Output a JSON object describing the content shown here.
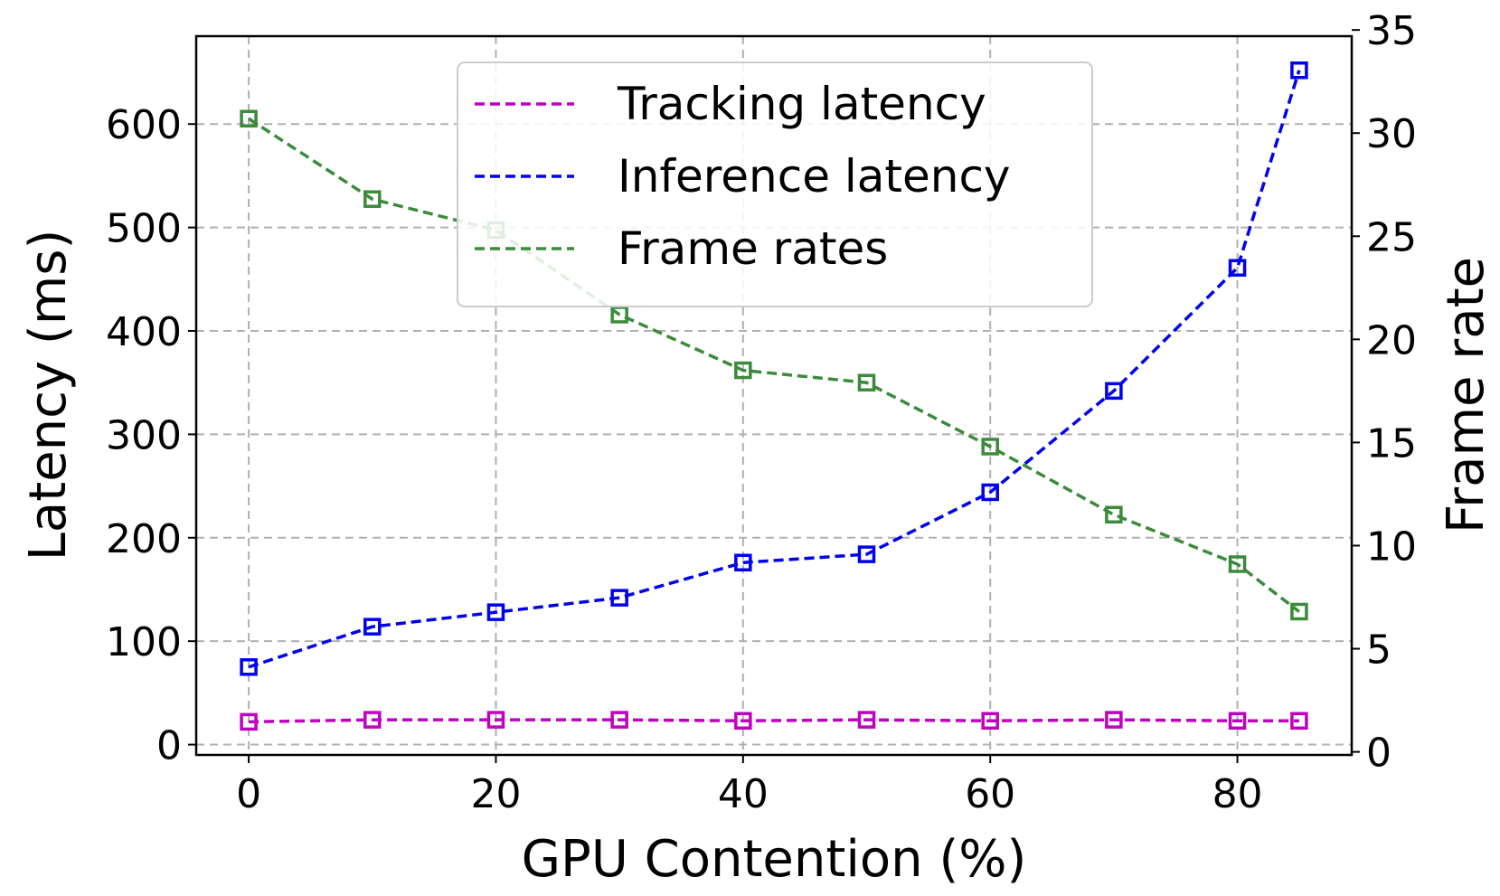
{
  "chart_data": {
    "type": "line",
    "title": "",
    "xlabel": "GPU Contention (%)",
    "ylabel": "Latency (ms)",
    "y2label": "Frame rate",
    "x": [
      0,
      10,
      20,
      30,
      40,
      50,
      60,
      70,
      80,
      85
    ],
    "xlim": [
      -4.25,
      89.25
    ],
    "ylim": [
      -10,
      685
    ],
    "y2lim": [
      -0.15,
      34.7
    ],
    "xticks": [
      0,
      20,
      40,
      60,
      80
    ],
    "yticks": [
      0,
      100,
      200,
      300,
      400,
      500,
      600
    ],
    "y2ticks": [
      0,
      5,
      10,
      15,
      20,
      25,
      30,
      35
    ],
    "grid": true,
    "legend_position": "upper-center",
    "series": [
      {
        "name": "Tracking latency",
        "axis": "left",
        "color": "#c000c0",
        "marker": "square",
        "linestyle": "dashed",
        "values": [
          22,
          24,
          24,
          24,
          23,
          24,
          23,
          24,
          23,
          23
        ]
      },
      {
        "name": "Inference latency",
        "axis": "left",
        "color": "#0000ee",
        "marker": "square",
        "linestyle": "dashed",
        "values": [
          75,
          114,
          128,
          142,
          176,
          184,
          244,
          342,
          461,
          652
        ]
      },
      {
        "name": "Frame rates",
        "axis": "right",
        "color": "#3c8a3c",
        "marker": "square",
        "linestyle": "dashed",
        "values": [
          30.7,
          26.8,
          25.3,
          21.2,
          18.5,
          17.9,
          14.8,
          11.5,
          9.1,
          6.8
        ]
      }
    ]
  }
}
